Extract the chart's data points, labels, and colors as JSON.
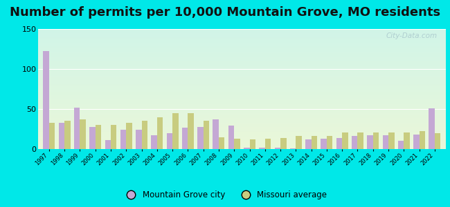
{
  "title": "Number of permits per 10,000 Mountain Grove, MO residents",
  "years": [
    1997,
    1998,
    1999,
    2000,
    2001,
    2002,
    2003,
    2004,
    2005,
    2006,
    2007,
    2008,
    2009,
    2010,
    2011,
    2012,
    2013,
    2014,
    2015,
    2016,
    2017,
    2018,
    2019,
    2020,
    2021,
    2022
  ],
  "city_values": [
    122,
    33,
    52,
    28,
    11,
    24,
    24,
    17,
    20,
    27,
    28,
    37,
    29,
    2,
    2,
    2,
    1,
    12,
    13,
    14,
    16,
    17,
    17,
    10,
    18,
    51
  ],
  "mo_values": [
    33,
    35,
    37,
    30,
    30,
    33,
    35,
    40,
    45,
    45,
    35,
    15,
    13,
    12,
    13,
    14,
    16,
    16,
    16,
    21,
    21,
    21,
    21,
    21,
    22,
    20
  ],
  "city_color": "#c4a8d4",
  "mo_color": "#c8cc80",
  "ylim": [
    0,
    150
  ],
  "yticks": [
    0,
    50,
    100,
    150
  ],
  "outer_bg": "#00e8e8",
  "title_fontsize": 13,
  "legend_city": "Mountain Grove city",
  "legend_mo": "Missouri average",
  "watermark": "City-Data.com",
  "grad_top": "#d0f0e8",
  "grad_bottom": "#e8f5d8"
}
